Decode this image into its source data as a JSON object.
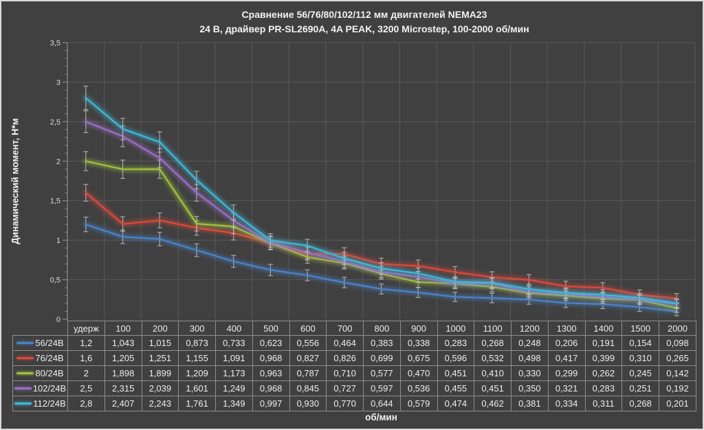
{
  "title": {
    "line1": "Сравнение 56/76/80/102/112 мм двигателей NEMA23",
    "line2": "24 В, драйвер PR-SL2690A, 4A PEAK, 3200 Microstep, 100-2000 об/мин"
  },
  "colors": {
    "background": "#404040",
    "gridline": "#5a5a5a",
    "axis": "#8c8c8c",
    "tick_label": "#dcdcdc",
    "table_border": "#8f8f8f",
    "text": "#f2f2f2",
    "error_bar": "#c2c2c2"
  },
  "chart_data": {
    "type": "line",
    "title": "Сравнение 56/76/80/102/112 мм двигателей NEMA23",
    "subtitle": "24 В, драйвер PR-SL2690A, 4A PEAK, 3200 Microstep, 100-2000 об/мин",
    "xlabel": "об/мин",
    "ylabel": "Динамический момент, Н*м",
    "ylim": [
      0,
      3.5
    ],
    "ytick_step": 0.5,
    "ytick_labels": [
      "0",
      "0,5",
      "1",
      "1,5",
      "2",
      "2,5",
      "3",
      "3,5"
    ],
    "grid": true,
    "error_bars": true,
    "legend_position": "table-left",
    "categories": [
      "удерж",
      "100",
      "200",
      "300",
      "400",
      "500",
      "600",
      "700",
      "800",
      "900",
      "1000",
      "1100",
      "1200",
      "1300",
      "1400",
      "1500",
      "2000"
    ],
    "series": [
      {
        "name": "56/24В",
        "color": "#4a82c6",
        "values": [
          1.2,
          1.043,
          1.015,
          0.873,
          0.733,
          0.623,
          0.556,
          0.464,
          0.383,
          0.338,
          0.283,
          0.268,
          0.248,
          0.206,
          0.191,
          0.154,
          0.098
        ]
      },
      {
        "name": "76/24В",
        "color": "#d84a3c",
        "values": [
          1.6,
          1.205,
          1.251,
          1.155,
          1.091,
          0.968,
          0.827,
          0.826,
          0.699,
          0.675,
          0.596,
          0.532,
          0.498,
          0.417,
          0.399,
          0.31,
          0.265
        ]
      },
      {
        "name": "80/24В",
        "color": "#a0c03c",
        "values": [
          2,
          1.898,
          1.899,
          1.209,
          1.173,
          0.963,
          0.787,
          0.71,
          0.577,
          0.47,
          0.451,
          0.41,
          0.33,
          0.299,
          0.262,
          0.245,
          0.142
        ]
      },
      {
        "name": "102/24В",
        "color": "#9a6fc4",
        "values": [
          2.5,
          2.315,
          2.039,
          1.601,
          1.249,
          0.968,
          0.845,
          0.727,
          0.597,
          0.536,
          0.455,
          0.451,
          0.35,
          0.321,
          0.283,
          0.251,
          0.192
        ]
      },
      {
        "name": "112/24В",
        "color": "#3fb8d8",
        "values": [
          2.8,
          2.407,
          2.243,
          1.761,
          1.349,
          0.997,
          0.93,
          0.77,
          0.644,
          0.579,
          0.474,
          0.462,
          0.381,
          0.334,
          0.311,
          0.268,
          0.201
        ]
      }
    ]
  },
  "table": {
    "header": [
      "удерж",
      "100",
      "200",
      "300",
      "400",
      "500",
      "600",
      "700",
      "800",
      "900",
      "1000",
      "1100",
      "1200",
      "1300",
      "1400",
      "1500",
      "2000"
    ],
    "rows": [
      {
        "label": "56/24В",
        "color": "#4a82c6",
        "cells": [
          "1,2",
          "1,043",
          "1,015",
          "0,873",
          "0,733",
          "0,623",
          "0,556",
          "0,464",
          "0,383",
          "0,338",
          "0,283",
          "0,268",
          "0,248",
          "0,206",
          "0,191",
          "0,154",
          "0,098"
        ]
      },
      {
        "label": "76/24В",
        "color": "#d84a3c",
        "cells": [
          "1,6",
          "1,205",
          "1,251",
          "1,155",
          "1,091",
          "0,968",
          "0,827",
          "0,826",
          "0,699",
          "0,675",
          "0,596",
          "0,532",
          "0,498",
          "0,417",
          "0,399",
          "0,310",
          "0,265"
        ]
      },
      {
        "label": "80/24В",
        "color": "#a0c03c",
        "cells": [
          "2",
          "1,898",
          "1,899",
          "1,209",
          "1,173",
          "0,963",
          "0,787",
          "0,710",
          "0,577",
          "0,470",
          "0,451",
          "0,410",
          "0,330",
          "0,299",
          "0,262",
          "0,245",
          "0,142"
        ]
      },
      {
        "label": "102/24В",
        "color": "#9a6fc4",
        "cells": [
          "2,5",
          "2,315",
          "2,039",
          "1,601",
          "1,249",
          "0,968",
          "0,845",
          "0,727",
          "0,597",
          "0,536",
          "0,455",
          "0,451",
          "0,350",
          "0,321",
          "0,283",
          "0,251",
          "0,192"
        ]
      },
      {
        "label": "112/24В",
        "color": "#3fb8d8",
        "cells": [
          "2,8",
          "2,407",
          "2,243",
          "1,761",
          "1,349",
          "0,997",
          "0,930",
          "0,770",
          "0,644",
          "0,579",
          "0,474",
          "0,462",
          "0,381",
          "0,334",
          "0,311",
          "0,268",
          "0,201"
        ]
      }
    ]
  }
}
